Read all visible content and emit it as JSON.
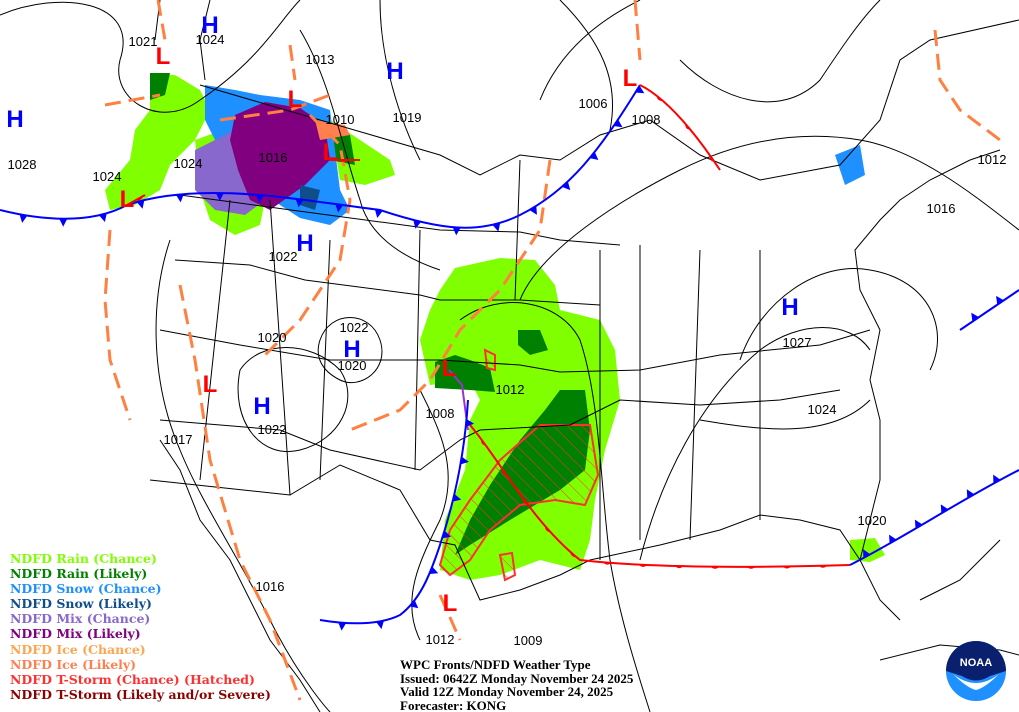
{
  "map": {
    "title": "WPC Fronts/NDFD Weather Type",
    "issued": "Issued: 0642Z Monday November 24 2025",
    "valid": "Valid 12Z Monday November 24, 2025",
    "forecaster": "Forecaster: KONG",
    "high_symbol": "H",
    "low_symbol": "L",
    "logo_text": "NOAA",
    "pressure_labels": [
      "1021",
      "1024",
      "1013",
      "1028",
      "1024",
      "1024",
      "1010",
      "1019",
      "1016",
      "1022",
      "1020",
      "1022",
      "1020",
      "1017",
      "1022",
      "1008",
      "1012",
      "1006",
      "1008",
      "1012",
      "1016",
      "1027",
      "1024",
      "1020",
      "1016",
      "1012",
      "1009"
    ],
    "colors": {
      "rain_chance": "#80ff00",
      "rain_likely": "#008000",
      "snow_chance": "#1e90ff",
      "snow_likely": "#104e8b",
      "mix_chance": "#8968cd",
      "mix_likely": "#800080",
      "ice_chance": "#ffa54f",
      "ice_likely": "#ff7f50",
      "tstorm_chance": "#ff3030",
      "tstorm_likely": "#8b0000",
      "cold_front": "#0000ff",
      "warm_front": "#ff0000",
      "trough": "#ff8040",
      "dryline": "#9932cc"
    }
  },
  "legend": [
    {
      "label": "NDFD Rain (Chance)",
      "color": "#80ff00"
    },
    {
      "label": "NDFD Rain (Likely)",
      "color": "#008000"
    },
    {
      "label": "NDFD Snow (Chance)",
      "color": "#1e90ff"
    },
    {
      "label": "NDFD Snow (Likely)",
      "color": "#104e8b"
    },
    {
      "label": "NDFD Mix (Chance)",
      "color": "#8968cd"
    },
    {
      "label": "NDFD Mix (Likely)",
      "color": "#800080"
    },
    {
      "label": "NDFD Ice (Chance)",
      "color": "#ffa54f"
    },
    {
      "label": "NDFD Ice (Likely)",
      "color": "#ff7f50"
    },
    {
      "label": "NDFD T-Storm (Chance) (Hatched)",
      "color": "#ff3030"
    },
    {
      "label": "NDFD T-Storm (Likely and/or Severe)",
      "color": "#8b0000"
    }
  ]
}
